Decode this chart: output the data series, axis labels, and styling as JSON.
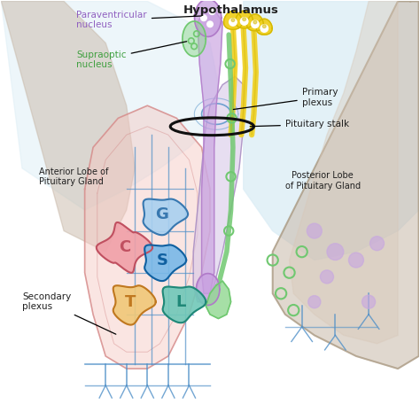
{
  "bg_color": "#ffffff",
  "labels": {
    "hypothalamus": "Hypothalamus",
    "paraventricular": "Paraventricular\nnucleus",
    "supraoptic": "Supraoptic\nnucleus",
    "primary_plexus": "Primary\nplexus",
    "pituitary_stalk": "Pituitary stalk",
    "posterior_lobe": "Posterior Lobe\nof Pituitary Gland",
    "anterior_lobe": "Anterior Lobe of\nPituitary Gland",
    "secondary_plexus": "Secondary\nplexus",
    "G": "G",
    "C": "C",
    "S": "S",
    "T": "T",
    "L": "L"
  },
  "colors": {
    "brain_bg": "#ddeef6",
    "brain_outline": "#b0a090",
    "anterior_lobe_fill": "#f5c6c0",
    "anterior_lobe_outline": "#d08080",
    "posterior_lobe_fill": "#d8c8e8",
    "posterior_lobe_outline": "#9070b0",
    "purple_nerve": "#b07ac8",
    "purple_nerve_fill": "#c8a0e0",
    "yellow_nerve": "#f0d020",
    "yellow_nerve_dark": "#d4b800",
    "green_nerve": "#70c870",
    "green_nerve_fill": "#90d890",
    "blue_vessels": "#5090c8",
    "blue_vessels_light": "#80b8e0",
    "cell_G_fill": "#a8d0f0",
    "cell_G_outline": "#3878b0",
    "cell_C_fill": "#f0a0a8",
    "cell_C_outline": "#c05060",
    "cell_S_fill": "#78b8e8",
    "cell_S_outline": "#1060a0",
    "cell_T_fill": "#f0c878",
    "cell_T_outline": "#c07820",
    "cell_L_fill": "#70c8b8",
    "cell_L_outline": "#208878",
    "label_paraventricular": "#9060c0",
    "label_supraoptic": "#40a040",
    "label_black": "#202020",
    "stalk_ellipse": "#101010"
  }
}
